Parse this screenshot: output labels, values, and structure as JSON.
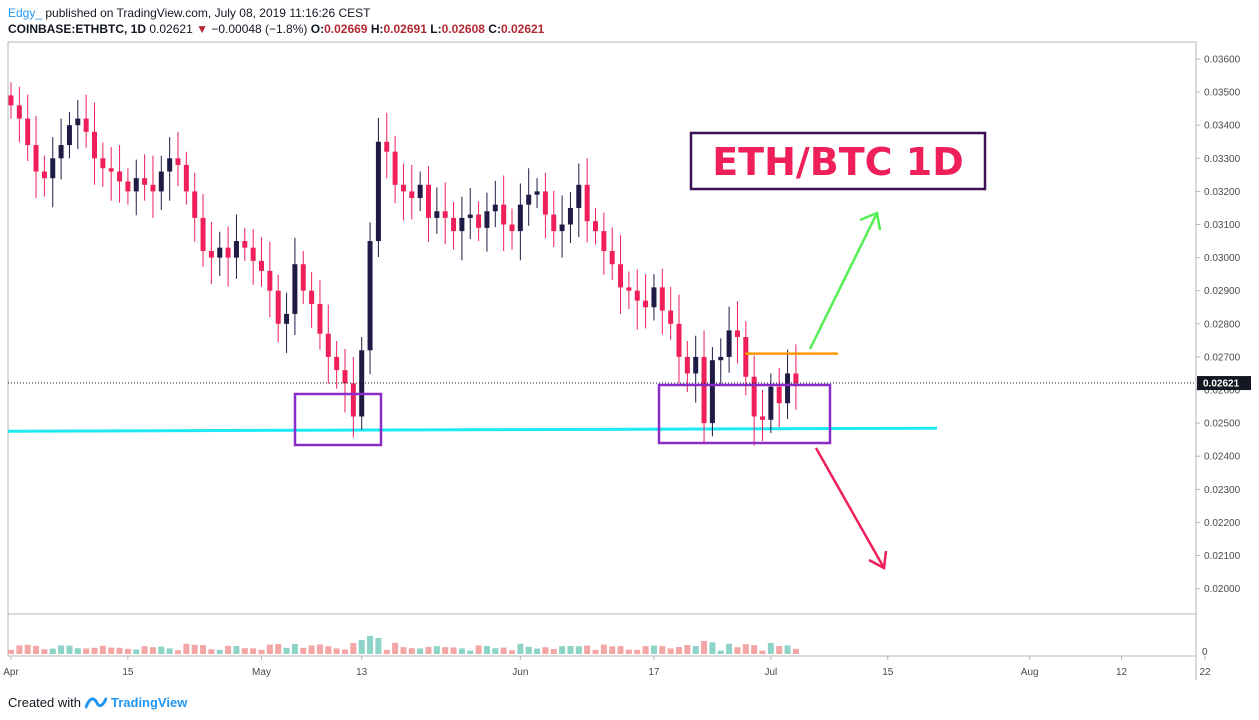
{
  "header": {
    "author": "Edgy_",
    "published": "published on TradingView.com, July 08, 2019 11:16:26 CEST",
    "symbol": "COINBASE:ETHBTC, 1D",
    "last": "0.02621",
    "change": "−0.00048 (−1.8%)",
    "o_label": "O:",
    "o_value": "0.02669",
    "h_label": "H:",
    "h_value": "0.02691",
    "l_label": "L:",
    "l_value": "0.02608",
    "c_label": "C:",
    "c_value": "0.02621"
  },
  "annotation": {
    "title": "ETH/BTC 1D"
  },
  "footer": {
    "created": "Created with",
    "brand": "TradingView"
  },
  "colors": {
    "up": "#1e1b46",
    "down": "#ef1f5a",
    "support": "#1ee8f2",
    "box": "#8b2cc9",
    "resistance": "#ff9800",
    "arrow_up": "#55ee55",
    "arrow_down": "#ef1f5a",
    "vol_up": "#8dd3c7",
    "vol_down": "#f4a5a5"
  },
  "chart_data": {
    "type": "candlestick",
    "y_ticks": [
      "0.03600",
      "0.03500",
      "0.03400",
      "0.03300",
      "0.03200",
      "0.03100",
      "0.03000",
      "0.02900",
      "0.02800",
      "0.02700",
      "0.02600",
      "0.02500",
      "0.02400",
      "0.02300",
      "0.02200",
      "0.02100",
      "0.02000"
    ],
    "ylim": [
      0.0195,
      0.0365
    ],
    "x_ticks": [
      {
        "label": "Apr",
        "day": 0
      },
      {
        "label": "15",
        "day": 14
      },
      {
        "label": "May",
        "day": 30
      },
      {
        "label": "13",
        "day": 42
      },
      {
        "label": "Jun",
        "day": 61
      },
      {
        "label": "17",
        "day": 77
      },
      {
        "label": "Jul",
        "day": 91
      },
      {
        "label": "15",
        "day": 105
      },
      {
        "label": "Aug",
        "day": 122
      },
      {
        "label": "12",
        "day": 133
      },
      {
        "label": "22",
        "day": 143
      }
    ],
    "last_price": "0.02621",
    "volume_zero_label": "0",
    "support_level": 0.0248,
    "resistance_level": 0.0271,
    "closes": [
      0.0346,
      0.0342,
      0.0334,
      0.0326,
      0.0324,
      0.033,
      0.0334,
      0.034,
      0.0342,
      0.0338,
      0.033,
      0.0327,
      0.0326,
      0.0323,
      0.032,
      0.0324,
      0.0322,
      0.032,
      0.0326,
      0.033,
      0.0328,
      0.032,
      0.0312,
      0.0302,
      0.03,
      0.0303,
      0.03,
      0.0305,
      0.0303,
      0.0299,
      0.0296,
      0.029,
      0.028,
      0.0283,
      0.0298,
      0.029,
      0.0286,
      0.0277,
      0.027,
      0.0266,
      0.0262,
      0.0252,
      0.0272,
      0.0305,
      0.0335,
      0.0332,
      0.0322,
      0.032,
      0.0318,
      0.0322,
      0.0312,
      0.0314,
      0.0312,
      0.0308,
      0.0312,
      0.0313,
      0.0309,
      0.0314,
      0.0316,
      0.031,
      0.0308,
      0.0316,
      0.0319,
      0.032,
      0.0313,
      0.0308,
      0.031,
      0.0315,
      0.0322,
      0.0311,
      0.0308,
      0.0302,
      0.0298,
      0.0291,
      0.029,
      0.0287,
      0.0285,
      0.0291,
      0.0284,
      0.028,
      0.027,
      0.0265,
      0.027,
      0.025,
      0.0269,
      0.027,
      0.0278,
      0.0276,
      0.0264,
      0.0252,
      0.0251,
      0.0261,
      0.0256,
      0.0265,
      0.0262
    ]
  }
}
